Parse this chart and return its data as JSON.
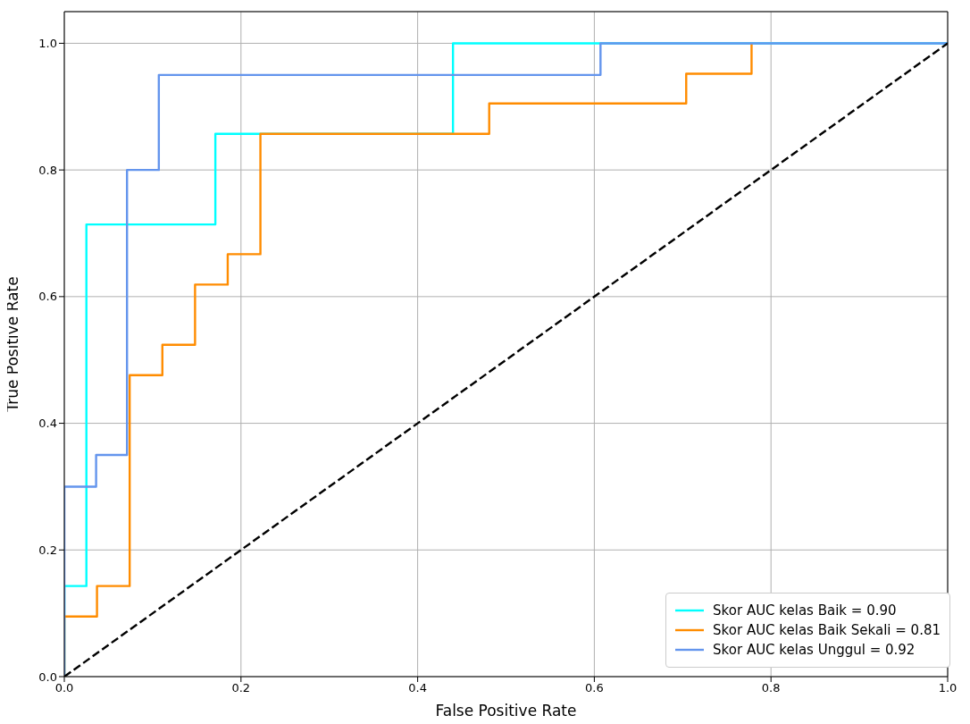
{
  "chart_data": {
    "type": "line",
    "xlabel": "False Positive Rate",
    "ylabel": "True Positive Rate",
    "xlim": [
      0,
      1
    ],
    "ylim": [
      0,
      1.05
    ],
    "xticks": [
      {
        "value": 0,
        "label": "0.0"
      },
      {
        "value": 0.2,
        "label": "0.2"
      },
      {
        "value": 0.4,
        "label": "0.4"
      },
      {
        "value": 0.6,
        "label": "0.6"
      },
      {
        "value": 0.8,
        "label": "0.8"
      },
      {
        "value": 1,
        "label": "1.0"
      }
    ],
    "yticks": [
      {
        "value": 0,
        "label": "0.0"
      },
      {
        "value": 0.2,
        "label": "0.2"
      },
      {
        "value": 0.4,
        "label": "0.4"
      },
      {
        "value": 0.6,
        "label": "0.6"
      },
      {
        "value": 0.8,
        "label": "0.8"
      },
      {
        "value": 1,
        "label": "1.0"
      }
    ],
    "grid": true,
    "legend": "bottom right",
    "line_style": "solid",
    "series": [
      {
        "name": "Skor AUC kelas Baik = 0.90",
        "color": "#00ffff",
        "x": [
          0,
          0,
          0.025,
          0.025,
          0.171,
          0.171,
          0.44,
          0.44,
          1
        ],
        "values": [
          0,
          0.143,
          0.143,
          0.714,
          0.714,
          0.857,
          0.857,
          1,
          1
        ]
      },
      {
        "name": "Skor AUC kelas Baik Sekali = 0.81",
        "color": "#ff8c00",
        "x": [
          0,
          0,
          0.037,
          0.037,
          0.074,
          0.074,
          0.111,
          0.111,
          0.148,
          0.148,
          0.185,
          0.185,
          0.222,
          0.222,
          0.481,
          0.481,
          0.704,
          0.704,
          0.778,
          0.778
        ],
        "values": [
          0,
          0.095,
          0.095,
          0.143,
          0.143,
          0.476,
          0.476,
          0.524,
          0.524,
          0.619,
          0.619,
          0.667,
          0.667,
          0.857,
          0.857,
          0.905,
          0.905,
          0.952,
          0.952,
          1
        ]
      },
      {
        "name": "Skor AUC kelas Unggul = 0.92",
        "color": "#6495ed",
        "x": [
          0,
          0,
          0.036,
          0.036,
          0.071,
          0.071,
          0.107,
          0.107,
          0.607,
          0.607,
          1
        ],
        "values": [
          0,
          0.3,
          0.3,
          0.35,
          0.35,
          0.8,
          0.8,
          0.95,
          0.95,
          1,
          1
        ]
      },
      {
        "color": "#000000",
        "line_style": "dashed",
        "x": [
          0,
          1
        ],
        "values": [
          0,
          1
        ]
      }
    ]
  }
}
